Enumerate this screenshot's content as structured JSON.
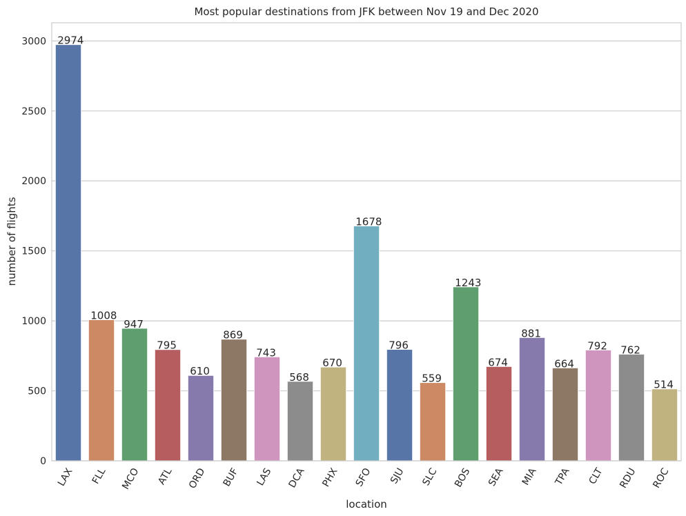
{
  "chart_data": {
    "type": "bar",
    "title": "Most popular destinations from JFK between Nov 19 and Dec 2020",
    "xlabel": "location",
    "ylabel": "number of flights",
    "categories": [
      "LAX",
      "FLL",
      "MCO",
      "ATL",
      "ORD",
      "BUF",
      "LAS",
      "DCA",
      "PHX",
      "SFO",
      "SJU",
      "SLC",
      "BOS",
      "SEA",
      "MIA",
      "TPA",
      "CLT",
      "RDU",
      "ROC"
    ],
    "values": [
      2974,
      1008,
      947,
      795,
      610,
      869,
      743,
      568,
      670,
      1678,
      796,
      559,
      1243,
      674,
      881,
      664,
      792,
      762,
      514
    ],
    "colors": [
      "#5875a8",
      "#cc8963",
      "#5f9e6e",
      "#b65d60",
      "#857aab",
      "#8d7866",
      "#d095bf",
      "#8c8c8c",
      "#c1b37f",
      "#71aec0",
      "#5875a8",
      "#cc8963",
      "#5f9e6e",
      "#b65d60",
      "#857aab",
      "#8d7866",
      "#d095bf",
      "#8c8c8c",
      "#c1b37f"
    ],
    "ylim": [
      0,
      3130
    ],
    "yticks": [
      0,
      500,
      1000,
      1500,
      2000,
      2500,
      3000
    ],
    "grid": true,
    "legend": "none"
  }
}
